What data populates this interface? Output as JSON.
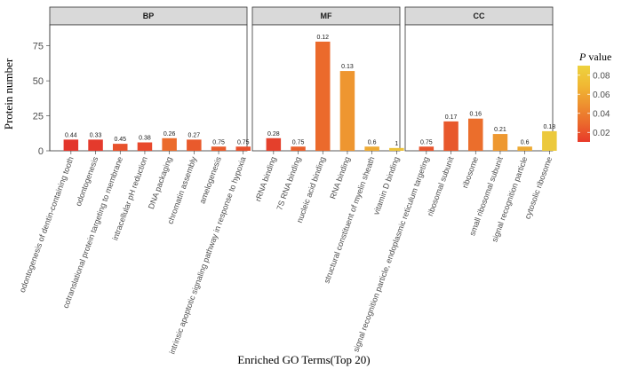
{
  "chart_data": {
    "type": "bar",
    "xlabel": "Enriched GO Terms(Top 20)",
    "ylabel": "Protein number",
    "ylim": [
      0,
      90
    ],
    "yticks": [
      0,
      25,
      50,
      75
    ],
    "legend": {
      "title_italic": "P",
      "title_rest": " value",
      "ticks": [
        "0.02",
        "0.04",
        "0.06",
        "0.08"
      ],
      "tick_values": [
        0.02,
        0.04,
        0.06,
        0.08
      ],
      "range": [
        0.01,
        0.09
      ],
      "colors": [
        "#e83a2a",
        "#eb6a2c",
        "#ee9330",
        "#f0ba34",
        "#edd23f"
      ],
      "placement": "right"
    },
    "panels": [
      {
        "name": "BP",
        "bars": [
          {
            "term": "odontogenesis of dentin-containing tooth",
            "value": 8,
            "label": "0.44",
            "color": "#e3362c"
          },
          {
            "term": "odontogenesis",
            "value": 8,
            "label": "0.33",
            "color": "#e43a2c"
          },
          {
            "term": "cotranslational protein targeting to membrane",
            "value": 5,
            "label": "0.45",
            "color": "#e8522c"
          },
          {
            "term": "intracellular pH reduction",
            "value": 6,
            "label": "0.38",
            "color": "#e8482c"
          },
          {
            "term": "DNA packaging",
            "value": 9,
            "label": "0.26",
            "color": "#eb6b2c"
          },
          {
            "term": "chromatin assembly",
            "value": 8,
            "label": "0.27",
            "color": "#e95a2c"
          },
          {
            "term": "amelogenesis",
            "value": 3,
            "label": "0.75",
            "color": "#e95c2c"
          },
          {
            "term": "intrinsic apoptotic signaling pathway in response to hypoxia",
            "value": 3,
            "label": "0.75",
            "color": "#e8502c"
          }
        ]
      },
      {
        "name": "MF",
        "bars": [
          {
            "term": "rRNA binding",
            "value": 9,
            "label": "0.28",
            "color": "#e4402c"
          },
          {
            "term": "7S RNA binding",
            "value": 3,
            "label": "0.75",
            "color": "#e9602c"
          },
          {
            "term": "nucleic acid binding",
            "value": 78,
            "label": "0.12",
            "color": "#eb6a2c"
          },
          {
            "term": "RNA binding",
            "value": 57,
            "label": "0.13",
            "color": "#ee9630"
          },
          {
            "term": "structural constituent of myelin sheath",
            "value": 3,
            "label": "0.6",
            "color": "#eeaa34"
          },
          {
            "term": "vitamin D binding",
            "value": 2,
            "label": "1",
            "color": "#ecc23a"
          }
        ]
      },
      {
        "name": "CC",
        "bars": [
          {
            "term": "signal recognition particle, endoplasmic reticulum targeting",
            "value": 3,
            "label": "0.75",
            "color": "#e8542c"
          },
          {
            "term": "ribosomal subunit",
            "value": 21,
            "label": "0.17",
            "color": "#e8582c"
          },
          {
            "term": "ribosome",
            "value": 23,
            "label": "0.16",
            "color": "#eb6e2c"
          },
          {
            "term": "small ribosomal subunit",
            "value": 12,
            "label": "0.21",
            "color": "#ee9830"
          },
          {
            "term": "signal recognition particle",
            "value": 3,
            "label": "0.6",
            "color": "#edaa34"
          },
          {
            "term": "cytosolic ribosome",
            "value": 14,
            "label": "0.18",
            "color": "#ecc93c"
          }
        ]
      }
    ]
  }
}
